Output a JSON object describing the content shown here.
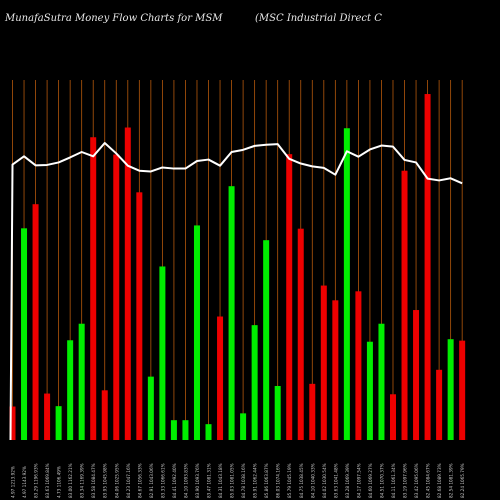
{
  "header": {
    "title_left": "MunafaSutra  Money Flow  Charts for MSM",
    "title_right": "(MSC Industrial Direct C"
  },
  "colors": {
    "background": "#000000",
    "up_bar": "#00ee00",
    "down_bar": "#ee0000",
    "grid": "#b4580c",
    "price_line": "#ffffff",
    "label": "#cccccc"
  },
  "chart_data": {
    "type": "bar",
    "title": "MunafaSutra  Money Flow  Charts for MSM",
    "subtitle": "(MSC Industrial Direct C",
    "y_range": [
      0,
      100
    ],
    "grid": true,
    "bars": [
      {
        "label": "4.97 1213.92%",
        "value": 9.3,
        "dir": "down"
      },
      {
        "label": "4.97 1143.92%",
        "value": 58.8,
        "dir": "up"
      },
      {
        "label": "83.29 1196.93%",
        "value": 65.5,
        "dir": "down"
      },
      {
        "label": "83.63 1069.84%",
        "value": 12.9,
        "dir": "down"
      },
      {
        "label": "4.73 1106.49%",
        "value": 9.4,
        "dir": "up"
      },
      {
        "label": "83.00 1162.21%",
        "value": 27.7,
        "dir": "up"
      },
      {
        "label": "83.34 1169.39%",
        "value": 32.3,
        "dir": "up"
      },
      {
        "label": "83.58 1084.47%",
        "value": 84.1,
        "dir": "down"
      },
      {
        "label": "83.95 1045.98%",
        "value": 13.8,
        "dir": "down"
      },
      {
        "label": "84.06 1025.95%",
        "value": 79.3,
        "dir": "down"
      },
      {
        "label": "84.23 1047.16%",
        "value": 86.8,
        "dir": "down"
      },
      {
        "label": "84.67 1056.33%",
        "value": 68.8,
        "dir": "down"
      },
      {
        "label": "82.91 1043.06%",
        "value": 17.6,
        "dir": "up"
      },
      {
        "label": "83.33 1066.61%",
        "value": 48.2,
        "dir": "up"
      },
      {
        "label": "84.41 1092.40%",
        "value": 5.5,
        "dir": "up"
      },
      {
        "label": "84.10 1093.83%",
        "value": 5.5,
        "dir": "up"
      },
      {
        "label": "83.90 1093.76%",
        "value": 59.6,
        "dir": "up"
      },
      {
        "label": "83.47 1081.31%",
        "value": 4.4,
        "dir": "up"
      },
      {
        "label": "84.31 1043.18%",
        "value": 34.3,
        "dir": "down"
      },
      {
        "label": "85.03 1081.05%",
        "value": 70.5,
        "dir": "up"
      },
      {
        "label": "84.78 1038.16%",
        "value": 7.4,
        "dir": "up"
      },
      {
        "label": "85.91 1062.44%",
        "value": 31.9,
        "dir": "up"
      },
      {
        "label": "85.86 1063.87%",
        "value": 55.5,
        "dir": "up"
      },
      {
        "label": "86.03 1074.16%",
        "value": 15.0,
        "dir": "up"
      },
      {
        "label": "85.79 1045.19%",
        "value": 79.4,
        "dir": "down"
      },
      {
        "label": "84.75 1038.45%",
        "value": 58.7,
        "dir": "down"
      },
      {
        "label": "84.10 1040.33%",
        "value": 15.6,
        "dir": "down"
      },
      {
        "label": "84.02 1030.54%",
        "value": 42.9,
        "dir": "down"
      },
      {
        "label": "83.63 1041.48%",
        "value": 38.8,
        "dir": "down"
      },
      {
        "label": "83.28 1069.39%",
        "value": 86.6,
        "dir": "up"
      },
      {
        "label": "84.17 1097.54%",
        "value": 41.3,
        "dir": "down"
      },
      {
        "label": "84.60 1069.27%",
        "value": 27.3,
        "dir": "up"
      },
      {
        "label": "84.51 1070.37%",
        "value": 32.3,
        "dir": "up"
      },
      {
        "label": "84.11 1061.34%",
        "value": 12.7,
        "dir": "down"
      },
      {
        "label": "83.19 1097.96%",
        "value": 74.8,
        "dir": "down"
      },
      {
        "label": "83.42 1095.06%",
        "value": 36.1,
        "dir": "down"
      },
      {
        "label": "82.45 1084.67%",
        "value": 96.1,
        "dir": "down"
      },
      {
        "label": "82.68 1089.73%",
        "value": 19.5,
        "dir": "down"
      },
      {
        "label": "82.54 1081.39%",
        "value": 28.0,
        "dir": "up"
      },
      {
        "label": "82.24 1065.79%",
        "value": 27.6,
        "dir": "down"
      }
    ],
    "price_line": [
      76.5,
      78.8,
      76.3,
      76.4,
      77.1,
      78.5,
      80.0,
      78.8,
      82.5,
      79.6,
      76.2,
      74.8,
      74.6,
      75.7,
      75.4,
      75.4,
      77.5,
      77.9,
      76.2,
      80.0,
      80.6,
      81.7,
      82.0,
      82.2,
      78.1,
      76.8,
      76.0,
      75.6,
      73.7,
      80.2,
      78.7,
      80.7,
      81.8,
      81.5,
      77.8,
      77.1,
      72.6,
      72.1,
      72.7,
      71.3
    ]
  }
}
